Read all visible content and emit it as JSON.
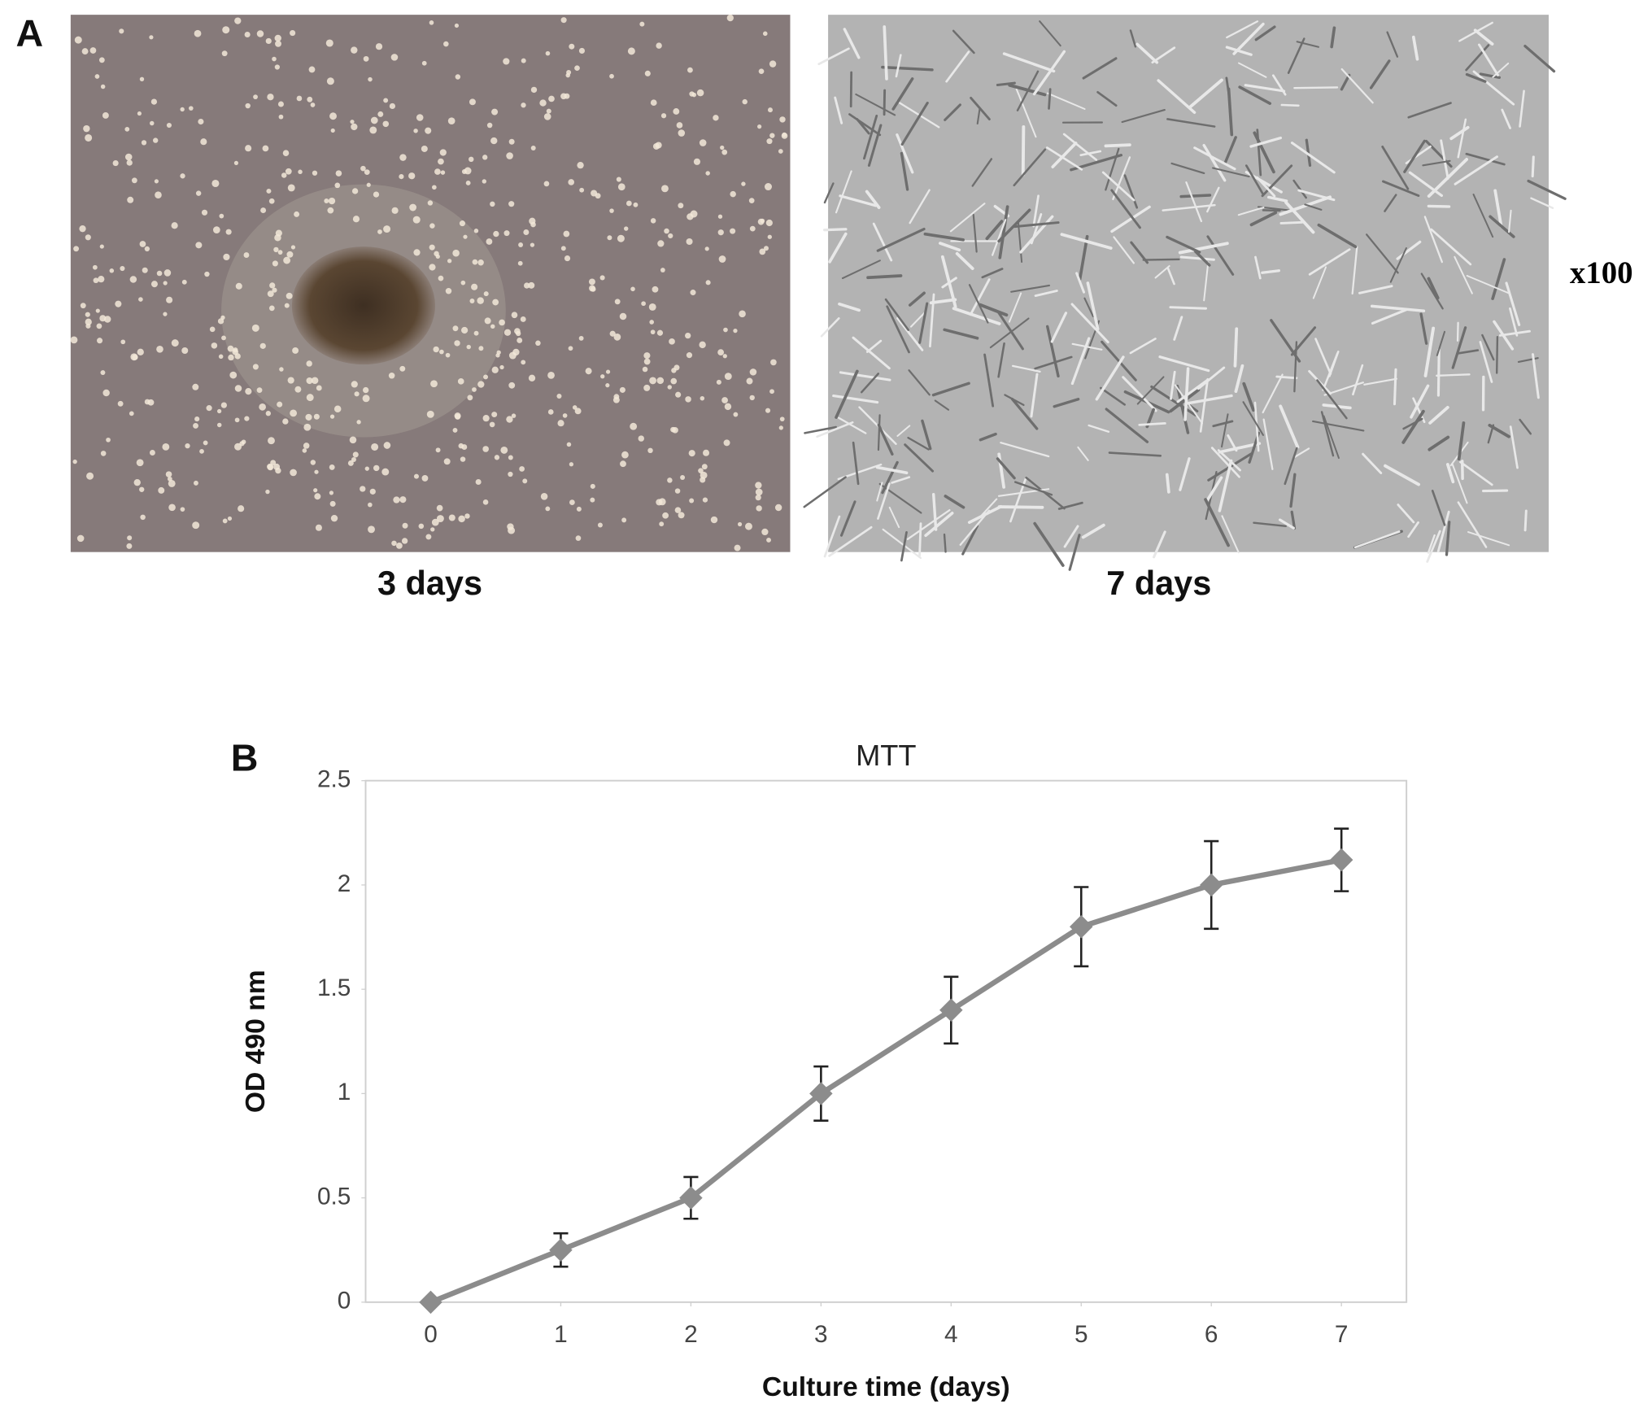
{
  "panels": {
    "a": {
      "label": "A",
      "captions": [
        "3 days",
        "7 days"
      ],
      "magnification": "x100"
    },
    "b": {
      "label": "B"
    }
  },
  "chart_data": {
    "type": "line",
    "title": "MTT",
    "xlabel": "Culture time (days)",
    "ylabel": "OD 490 nm",
    "x": [
      0,
      1,
      2,
      3,
      4,
      5,
      6,
      7
    ],
    "values": [
      0,
      0.25,
      0.5,
      1.0,
      1.4,
      1.8,
      2.0,
      2.12
    ],
    "errors": [
      0,
      0.08,
      0.1,
      0.13,
      0.16,
      0.19,
      0.21,
      0.15
    ],
    "color": "#8c8c8c",
    "error_color": "#222222",
    "xlim": [
      -0.5,
      7.5
    ],
    "xticks": [
      0,
      1,
      2,
      3,
      4,
      5,
      6,
      7
    ],
    "ylim": [
      0,
      2.5
    ],
    "yticks": [
      0,
      0.5,
      1,
      1.5,
      2,
      2.5
    ],
    "grid": false
  }
}
